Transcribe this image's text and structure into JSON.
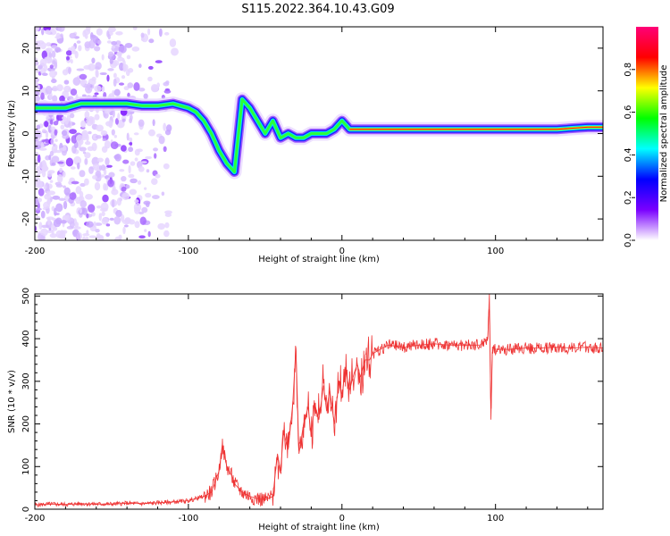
{
  "figure": {
    "title": "S115.2022.364.10.43.G09"
  },
  "chart_data": [
    {
      "type": "heatmap",
      "title": "S115.2022.364.10.43.G09",
      "xlabel": "Height of straight line (km)",
      "ylabel": "Frequency (Hz)",
      "xlim": [
        -200,
        170
      ],
      "ylim": [
        -25,
        25
      ],
      "x_ticks": [
        -200,
        -100,
        0,
        100
      ],
      "x_tick_labels": [
        "-200",
        "-100",
        "0",
        "100"
      ],
      "y_ticks": [
        -20,
        -10,
        0,
        10,
        20
      ],
      "y_tick_labels": [
        "-20",
        "-10",
        "0",
        "10",
        "20"
      ],
      "colorbar": {
        "label": "Normalized spectral amplitude",
        "range": [
          0,
          1
        ],
        "ticks": [
          0.0,
          0.2,
          0.4,
          0.6,
          0.8
        ],
        "tick_labels": [
          "0.0",
          "0.2",
          "0.4",
          "0.6",
          "0.8"
        ],
        "colormap": [
          "#ffffff",
          "#7a00ff",
          "#0000ff",
          "#00ffff",
          "#00ff00",
          "#ffff00",
          "#ff0000",
          "#ff0077"
        ]
      },
      "ridge": {
        "x": [
          -200,
          -190,
          -180,
          -170,
          -160,
          -150,
          -140,
          -130,
          -120,
          -110,
          -100,
          -95,
          -90,
          -85,
          -80,
          -75,
          -70,
          -65,
          -60,
          -55,
          -50,
          -45,
          -40,
          -35,
          -30,
          -25,
          -20,
          -15,
          -10,
          -5,
          0,
          5,
          10,
          20,
          40,
          60,
          80,
          100,
          120,
          140,
          160,
          170
        ],
        "y": [
          6,
          6,
          6,
          7,
          7,
          7,
          7,
          6.5,
          6.5,
          7,
          6,
          5,
          3,
          0,
          -4,
          -7,
          -9,
          8,
          6,
          3,
          0,
          3,
          -1,
          0,
          -1,
          -1,
          0,
          0,
          0,
          1,
          3,
          1,
          1,
          1,
          1,
          1,
          1,
          1,
          1,
          1,
          1.5,
          1.5
        ]
      },
      "grid": false
    },
    {
      "type": "line",
      "xlabel": "Height of straight line (km)",
      "ylabel": "SNR (10 * v/v)",
      "xlim": [
        -200,
        170
      ],
      "ylim": [
        0,
        505
      ],
      "x_ticks": [
        -200,
        -100,
        0,
        100
      ],
      "x_tick_labels": [
        "-200",
        "-100",
        "0",
        "100"
      ],
      "y_ticks": [
        0,
        100,
        200,
        300,
        400,
        500
      ],
      "y_tick_labels": [
        "0",
        "100",
        "200",
        "300",
        "400",
        "500"
      ],
      "series": [
        {
          "color": "#ee3333",
          "x": [
            -200,
            -190,
            -180,
            -170,
            -160,
            -150,
            -140,
            -130,
            -120,
            -110,
            -100,
            -95,
            -90,
            -85,
            -80,
            -78,
            -75,
            -72,
            -70,
            -65,
            -60,
            -55,
            -50,
            -45,
            -42,
            -40,
            -38,
            -35,
            -32,
            -30,
            -28,
            -25,
            -22,
            -20,
            -18,
            -15,
            -12,
            -10,
            -8,
            -5,
            -2,
            0,
            2,
            5,
            8,
            10,
            12,
            15,
            18,
            20,
            25,
            30,
            40,
            50,
            60,
            70,
            80,
            90,
            95,
            96,
            97,
            98,
            100,
            110,
            120,
            130,
            140,
            150,
            160,
            170
          ],
          "y": [
            10,
            12,
            11,
            13,
            12,
            12,
            14,
            13,
            15,
            17,
            20,
            25,
            30,
            40,
            90,
            150,
            100,
            80,
            60,
            40,
            30,
            25,
            22,
            30,
            130,
            90,
            180,
            140,
            250,
            380,
            130,
            200,
            240,
            170,
            250,
            210,
            290,
            230,
            280,
            200,
            300,
            260,
            330,
            280,
            320,
            340,
            310,
            350,
            350,
            365,
            375,
            385,
            380,
            385,
            388,
            385,
            385,
            385,
            400,
            505,
            210,
            380,
            375,
            375,
            378,
            378,
            380,
            378,
            380,
            378
          ]
        }
      ],
      "grid": false
    }
  ]
}
